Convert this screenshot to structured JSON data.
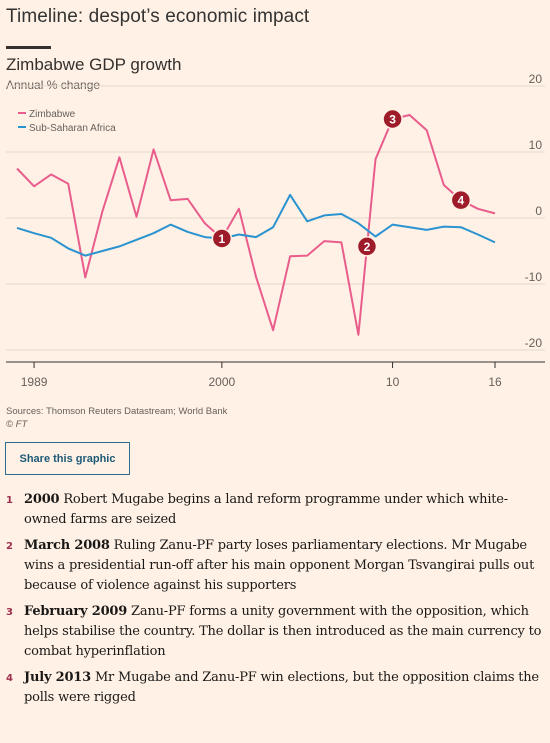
{
  "page": {
    "title": "Timeline: despot’s economic impact",
    "share_label": "Share this graphic",
    "source_line1": "Sources: Thomson Reuters Datastream; World Bank",
    "source_line2": "© FT"
  },
  "chart_data": {
    "type": "line",
    "title": "Zimbabwe GDP growth",
    "subtitle": "Annual % change",
    "ylim": [
      -20,
      20
    ],
    "y_ticks": [
      20,
      10,
      0,
      -10,
      -20
    ],
    "x_tick_labels": [
      {
        "year": 1989,
        "label": "1989"
      },
      {
        "year": 2000,
        "label": "2000"
      },
      {
        "year": 2010,
        "label": "10"
      },
      {
        "year": 2016,
        "label": "16"
      }
    ],
    "legend_position": "top-left",
    "series": [
      {
        "name": "Zimbabwe",
        "color": "#e95d8c",
        "points": [
          [
            1988,
            7.5
          ],
          [
            1989,
            4.8
          ],
          [
            1990,
            6.6
          ],
          [
            1991,
            5.2
          ],
          [
            1992,
            -9.0
          ],
          [
            1993,
            1.0
          ],
          [
            1994,
            9.2
          ],
          [
            1995,
            0.2
          ],
          [
            1996,
            10.4
          ],
          [
            1997,
            2.7
          ],
          [
            1998,
            2.9
          ],
          [
            1999,
            -0.8
          ],
          [
            2000,
            -3.1
          ],
          [
            2001,
            1.4
          ],
          [
            2002,
            -8.9
          ],
          [
            2003,
            -17.0
          ],
          [
            2004,
            -5.8
          ],
          [
            2005,
            -5.7
          ],
          [
            2006,
            -3.5
          ],
          [
            2007,
            -3.7
          ],
          [
            2008,
            -17.7
          ],
          [
            2009,
            8.9
          ],
          [
            2010,
            15.0
          ],
          [
            2011,
            15.6
          ],
          [
            2012,
            13.3
          ],
          [
            2013,
            5.0
          ],
          [
            2014,
            2.7
          ],
          [
            2015,
            1.4
          ],
          [
            2016,
            0.7
          ]
        ]
      },
      {
        "name": "Sub-Saharan Africa",
        "color": "#2a93d0",
        "points": [
          [
            1988,
            -1.5
          ],
          [
            1989,
            -2.3
          ],
          [
            1990,
            -3.0
          ],
          [
            1991,
            -4.6
          ],
          [
            1992,
            -5.7
          ],
          [
            1993,
            -5.0
          ],
          [
            1994,
            -4.3
          ],
          [
            1995,
            -3.3
          ],
          [
            1996,
            -2.3
          ],
          [
            1997,
            -1.0
          ],
          [
            1998,
            -2.1
          ],
          [
            1999,
            -2.9
          ],
          [
            2000,
            -3.1
          ],
          [
            2001,
            -2.5
          ],
          [
            2002,
            -2.9
          ],
          [
            2003,
            -1.4
          ],
          [
            2004,
            3.5
          ],
          [
            2005,
            -0.5
          ],
          [
            2006,
            0.4
          ],
          [
            2007,
            0.6
          ],
          [
            2008,
            -0.8
          ],
          [
            2009,
            -2.8
          ],
          [
            2010,
            -1.0
          ],
          [
            2011,
            -1.4
          ],
          [
            2012,
            -1.8
          ],
          [
            2013,
            -1.3
          ],
          [
            2014,
            -1.4
          ],
          [
            2015,
            -2.5
          ],
          [
            2016,
            -3.7
          ]
        ]
      }
    ],
    "annotations": [
      {
        "label": "1",
        "year": 2000,
        "value": -3.1
      },
      {
        "label": "2",
        "year": 2008.5,
        "value": -4.3
      },
      {
        "label": "3",
        "year": 2010,
        "value": 15.0
      },
      {
        "label": "4",
        "year": 2014,
        "value": 2.7
      }
    ]
  },
  "events": [
    {
      "num": "1",
      "date": "2000",
      "text": " Robert Mugabe begins a land reform programme under which white-owned farms are seized"
    },
    {
      "num": "2",
      "date": "March 2008",
      "text": " Ruling Zanu-PF party loses parliamentary elections. Mr Mugabe wins a presidential run-off after his main opponent Morgan Tsvangirai pulls out because of violence against his supporters"
    },
    {
      "num": "3",
      "date": "February 2009",
      "text": " Zanu-PF forms a unity government with the opposition, which helps stabilise the country. The dollar is then introduced as the main currency to combat hyperinflation"
    },
    {
      "num": "4",
      "date": "July 2013",
      "text": " Mr Mugabe and Zanu-PF win elections, but the opposition claims the polls were rigged"
    }
  ],
  "colors": {
    "background": "#fff1e5",
    "marker": "#9e1b2a",
    "gridline": "#e3d8cc"
  }
}
